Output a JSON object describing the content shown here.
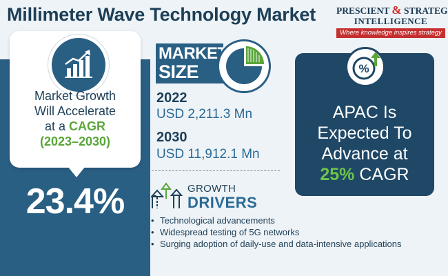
{
  "title": "Millimeter Wave Technology Market",
  "logo": {
    "line1_a": "PRESCIENT",
    "amp": "&",
    "line1_b": "STRATEGIC",
    "line2": "INTELLIGENCE",
    "tagline": "Where knowledge inspires strategy"
  },
  "growth_card": {
    "icon": "bar-chart-growth-icon",
    "line1": "Market Growth",
    "line2": "Will Accelerate",
    "line3_prefix": "at a ",
    "line3_highlight": "CAGR",
    "period": "(2023–2030)",
    "value": "23.4%"
  },
  "market_size": {
    "label_line1": "MARKET",
    "label_line2": "SIZE",
    "icon": "pie-chart-icon",
    "entries": [
      {
        "year": "2022",
        "value": "USD 2,211.3 Mn"
      },
      {
        "year": "2030",
        "value": "USD 11,912.1 Mn"
      }
    ]
  },
  "apac": {
    "icon": "percent-up-icon",
    "line1": "APAC Is",
    "line2": "Expected To",
    "line3": "Advance at",
    "highlight": "25%",
    "suffix": "CAGR"
  },
  "drivers": {
    "icon": "growth-arrows-icon",
    "title1": "GROWTH",
    "title2": "DRIVERS",
    "items": [
      "Technological advancements",
      "Widespread testing of 5G networks",
      "Surging adoption of daily-use and data-intensive applications"
    ]
  },
  "colors": {
    "navy": "#1d3f57",
    "panel_blue": "#2a5f84",
    "panel_dark": "#1f4766",
    "green": "#5aa63a",
    "red": "#c62f2f"
  }
}
